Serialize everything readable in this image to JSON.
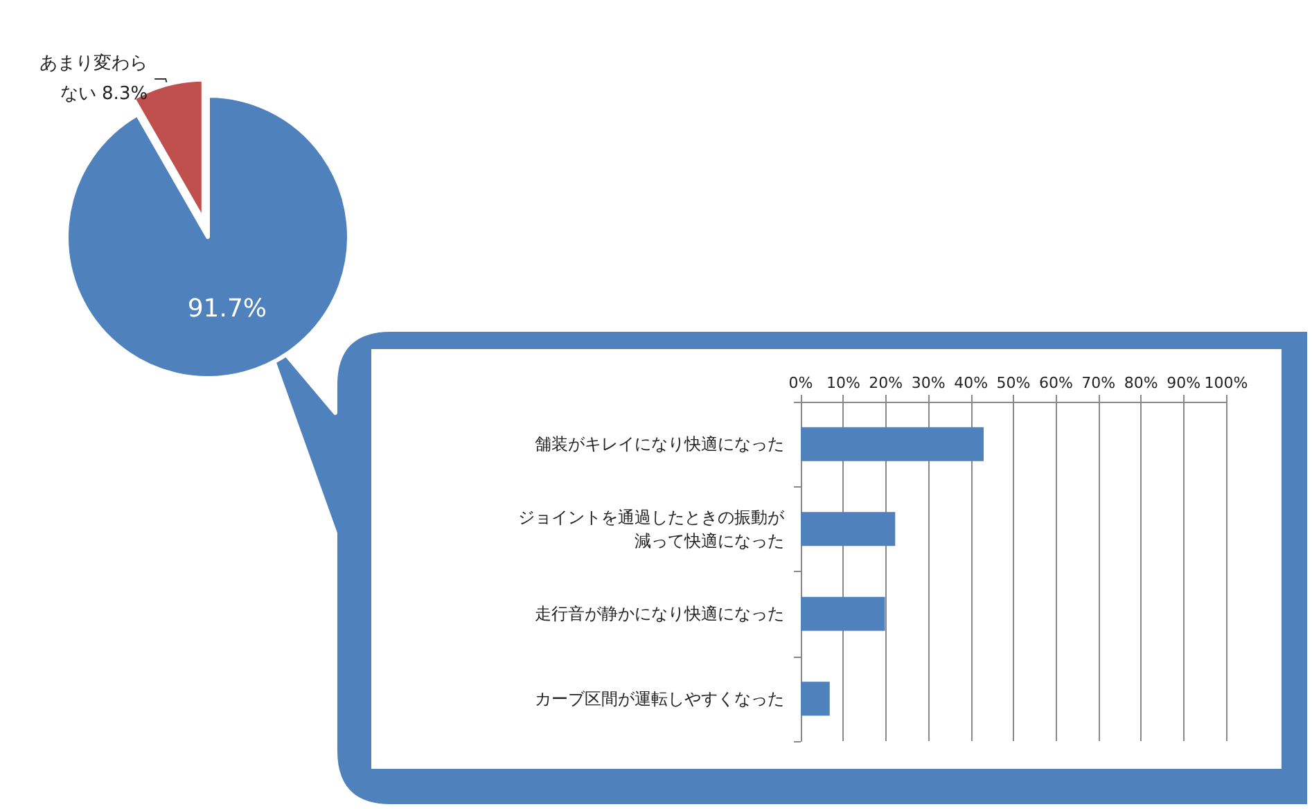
{
  "chart_data": [
    {
      "type": "pie",
      "categories": [
        null,
        "あまり変わらない"
      ],
      "values": [
        91.7,
        8.3
      ],
      "colors": [
        "#4f81bd",
        "#c0504d"
      ],
      "value_labels": [
        "91.7%",
        "8.3%"
      ]
    },
    {
      "type": "bar",
      "orientation": "horizontal",
      "categories": [
        "舗装がキレイになり快適になった",
        "ジョイントを通過したときの振動が減って快適になった",
        "走行音が静かになり快適になった",
        "カーブ区間が運転しやすくなった"
      ],
      "values": [
        43,
        22.2,
        19.8,
        6.8
      ],
      "color": "#4f81bd",
      "xlim": [
        0,
        100
      ],
      "xticks": [
        {
          "value": 0,
          "label": "0%"
        },
        {
          "value": 10,
          "label": "10%"
        },
        {
          "value": 20,
          "label": "20%"
        },
        {
          "value": 30,
          "label": "30%"
        },
        {
          "value": 40,
          "label": "40%"
        },
        {
          "value": 50,
          "label": "50%"
        },
        {
          "value": 60,
          "label": "60%"
        },
        {
          "value": 70,
          "label": "70%"
        },
        {
          "value": 80,
          "label": "80%"
        },
        {
          "value": 90,
          "label": "90%"
        },
        {
          "value": 100,
          "label": "100%"
        }
      ],
      "grid": "x"
    }
  ]
}
